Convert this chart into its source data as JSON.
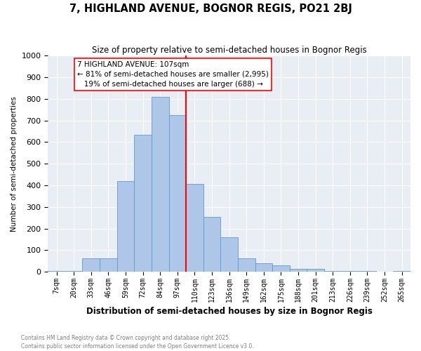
{
  "title": "7, HIGHLAND AVENUE, BOGNOR REGIS, PO21 2BJ",
  "subtitle": "Size of property relative to semi-detached houses in Bognor Regis",
  "xlabel": "Distribution of semi-detached houses by size in Bognor Regis",
  "ylabel": "Number of semi-detached properties",
  "footnote": "Contains HM Land Registry data © Crown copyright and database right 2025.\nContains public sector information licensed under the Open Government Licence v3.0.",
  "categories": [
    "7sqm",
    "20sqm",
    "33sqm",
    "46sqm",
    "59sqm",
    "72sqm",
    "84sqm",
    "97sqm",
    "110sqm",
    "123sqm",
    "136sqm",
    "149sqm",
    "162sqm",
    "175sqm",
    "188sqm",
    "201sqm",
    "213sqm",
    "226sqm",
    "239sqm",
    "252sqm",
    "265sqm"
  ],
  "values": [
    3,
    3,
    62,
    62,
    420,
    635,
    810,
    725,
    405,
    255,
    160,
    62,
    40,
    30,
    15,
    12,
    5,
    5,
    5,
    2,
    3
  ],
  "bar_color": "#aec6e8",
  "bar_edge_color": "#5b9bd5",
  "vline_color": "red",
  "vline_position": 8,
  "annotation_text": "7 HIGHLAND AVENUE: 107sqm\n← 81% of semi-detached houses are smaller (2,995)\n   19% of semi-detached houses are larger (688) →",
  "ylim": [
    0,
    1000
  ],
  "annotation_box_facecolor": "white",
  "annotation_box_edgecolor": "red",
  "background_color": "#e8eef4"
}
